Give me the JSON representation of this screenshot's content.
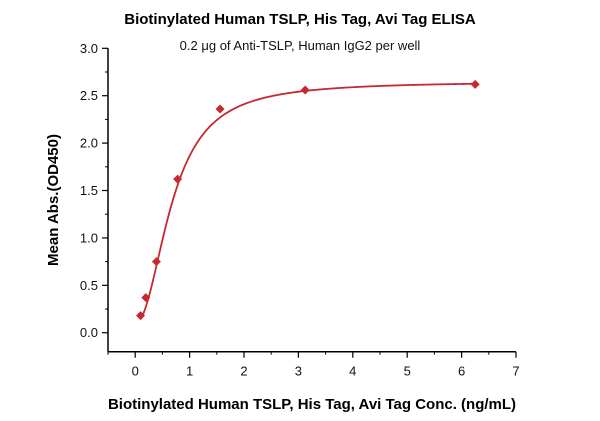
{
  "chart_data": {
    "type": "scatter",
    "title": "Biotinylated Human TSLP, His Tag, Avi Tag ELISA",
    "subtitle": "0.2 μg of Anti-TSLP, Human IgG2 per well",
    "xlabel": "Biotinylated Human TSLP, His Tag, Avi Tag Conc. (ng/mL)",
    "ylabel": "Mean Abs.(OD450)",
    "xlim": [
      -0.5,
      7
    ],
    "ylim": [
      -0.2,
      3.0
    ],
    "xticks": [
      "0",
      "1",
      "2",
      "3",
      "4",
      "5",
      "6",
      "7"
    ],
    "yticks": [
      "0.0",
      "0.5",
      "1.0",
      "1.5",
      "2.0",
      "2.5",
      "3.0"
    ],
    "grid": false,
    "color": "#c8282f",
    "series": [
      {
        "name": "Mean Abs.(OD450)",
        "x": [
          0.098,
          0.195,
          0.39,
          0.78,
          1.56,
          3.125,
          6.25
        ],
        "y": [
          0.18,
          0.37,
          0.75,
          1.62,
          2.36,
          2.56,
          2.62
        ],
        "fit": {
          "model": "4PL",
          "bottom": 0.1,
          "top": 2.65,
          "ec50": 0.68,
          "hill": 2.1
        }
      }
    ]
  }
}
